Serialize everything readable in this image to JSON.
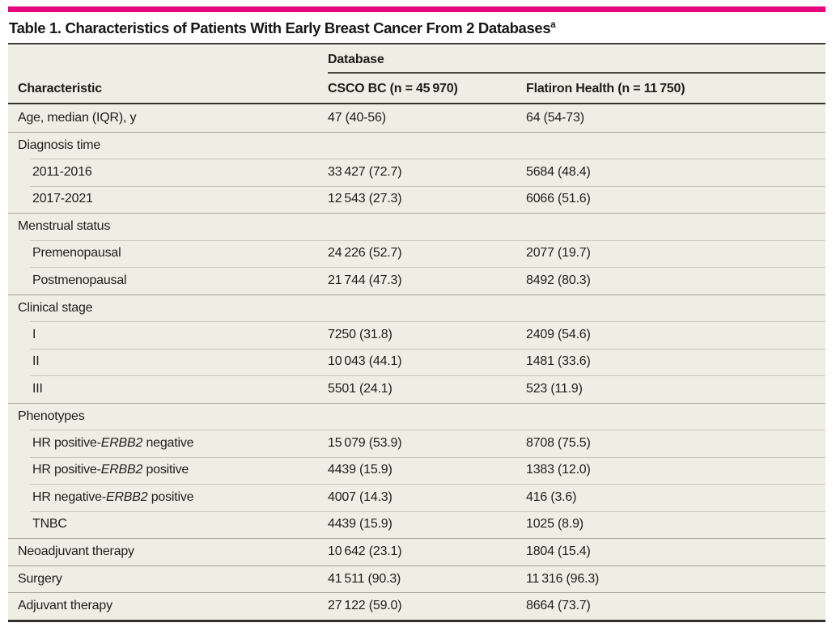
{
  "colors": {
    "accent": "#e5077c",
    "table_background": "#efeee5",
    "dark_rule": "#33322e"
  },
  "title": {
    "text": "Table 1. Characteristics of Patients With Early Breast Cancer From 2 Databases",
    "footnote_marker": "a"
  },
  "table": {
    "group_header": "Database",
    "columns": [
      "Characteristic",
      "CSCO BC (n = 45 970)",
      "Flatiron Health (n = 11 750)"
    ],
    "rows": [
      {
        "label": "Age, median (IQR), y",
        "csco": "47 (40-56)",
        "flatiron": "64 (54-73)",
        "level": 0,
        "sep": "none"
      },
      {
        "label": "Diagnosis time",
        "csco": "",
        "flatiron": "",
        "level": 0,
        "sep": "full",
        "section": true
      },
      {
        "label": "2011-2016",
        "csco": "33 427 (72.7)",
        "flatiron": "5684 (48.4)",
        "level": 1,
        "sep": "indent"
      },
      {
        "label": "2017-2021",
        "csco": "12 543 (27.3)",
        "flatiron": "6066 (51.6)",
        "level": 1,
        "sep": "indent"
      },
      {
        "label": "Menstrual status",
        "csco": "",
        "flatiron": "",
        "level": 0,
        "sep": "full",
        "section": true
      },
      {
        "label": "Premenopausal",
        "csco": "24 226 (52.7)",
        "flatiron": "2077 (19.7)",
        "level": 1,
        "sep": "indent"
      },
      {
        "label": "Postmenopausal",
        "csco": "21 744 (47.3)",
        "flatiron": "8492 (80.3)",
        "level": 1,
        "sep": "indent"
      },
      {
        "label": "Clinical stage",
        "csco": "",
        "flatiron": "",
        "level": 0,
        "sep": "full",
        "section": true
      },
      {
        "label": "I",
        "csco": "7250 (31.8)",
        "flatiron": "2409 (54.6)",
        "level": 1,
        "sep": "indent"
      },
      {
        "label": "II",
        "csco": "10 043 (44.1)",
        "flatiron": "1481 (33.6)",
        "level": 1,
        "sep": "indent"
      },
      {
        "label": "III",
        "csco": "5501 (24.1)",
        "flatiron": "523 (11.9)",
        "level": 1,
        "sep": "indent"
      },
      {
        "label": "Phenotypes",
        "csco": "",
        "flatiron": "",
        "level": 0,
        "sep": "full",
        "section": true
      },
      {
        "label_parts": [
          "HR positive-",
          "ERBB2",
          " negative"
        ],
        "csco": "15 079 (53.9)",
        "flatiron": "8708 (75.5)",
        "level": 1,
        "sep": "indent"
      },
      {
        "label_parts": [
          "HR positive-",
          "ERBB2",
          " positive"
        ],
        "csco": "4439 (15.9)",
        "flatiron": "1383 (12.0)",
        "level": 1,
        "sep": "indent"
      },
      {
        "label_parts": [
          "HR negative-",
          "ERBB2",
          " positive"
        ],
        "csco": "4007 (14.3)",
        "flatiron": "416 (3.6)",
        "level": 1,
        "sep": "indent"
      },
      {
        "label": "TNBC",
        "csco": "4439 (15.9)",
        "flatiron": "1025 (8.9)",
        "level": 1,
        "sep": "indent"
      },
      {
        "label": "Neoadjuvant therapy",
        "csco": "10 642 (23.1)",
        "flatiron": "1804 (15.4)",
        "level": 0,
        "sep": "full"
      },
      {
        "label": "Surgery",
        "csco": "41 511 (90.3)",
        "flatiron": "11 316 (96.3)",
        "level": 0,
        "sep": "full"
      },
      {
        "label": "Adjuvant therapy",
        "csco": "27 122 (59.0)",
        "flatiron": "8664 (73.7)",
        "level": 0,
        "sep": "full"
      }
    ]
  }
}
